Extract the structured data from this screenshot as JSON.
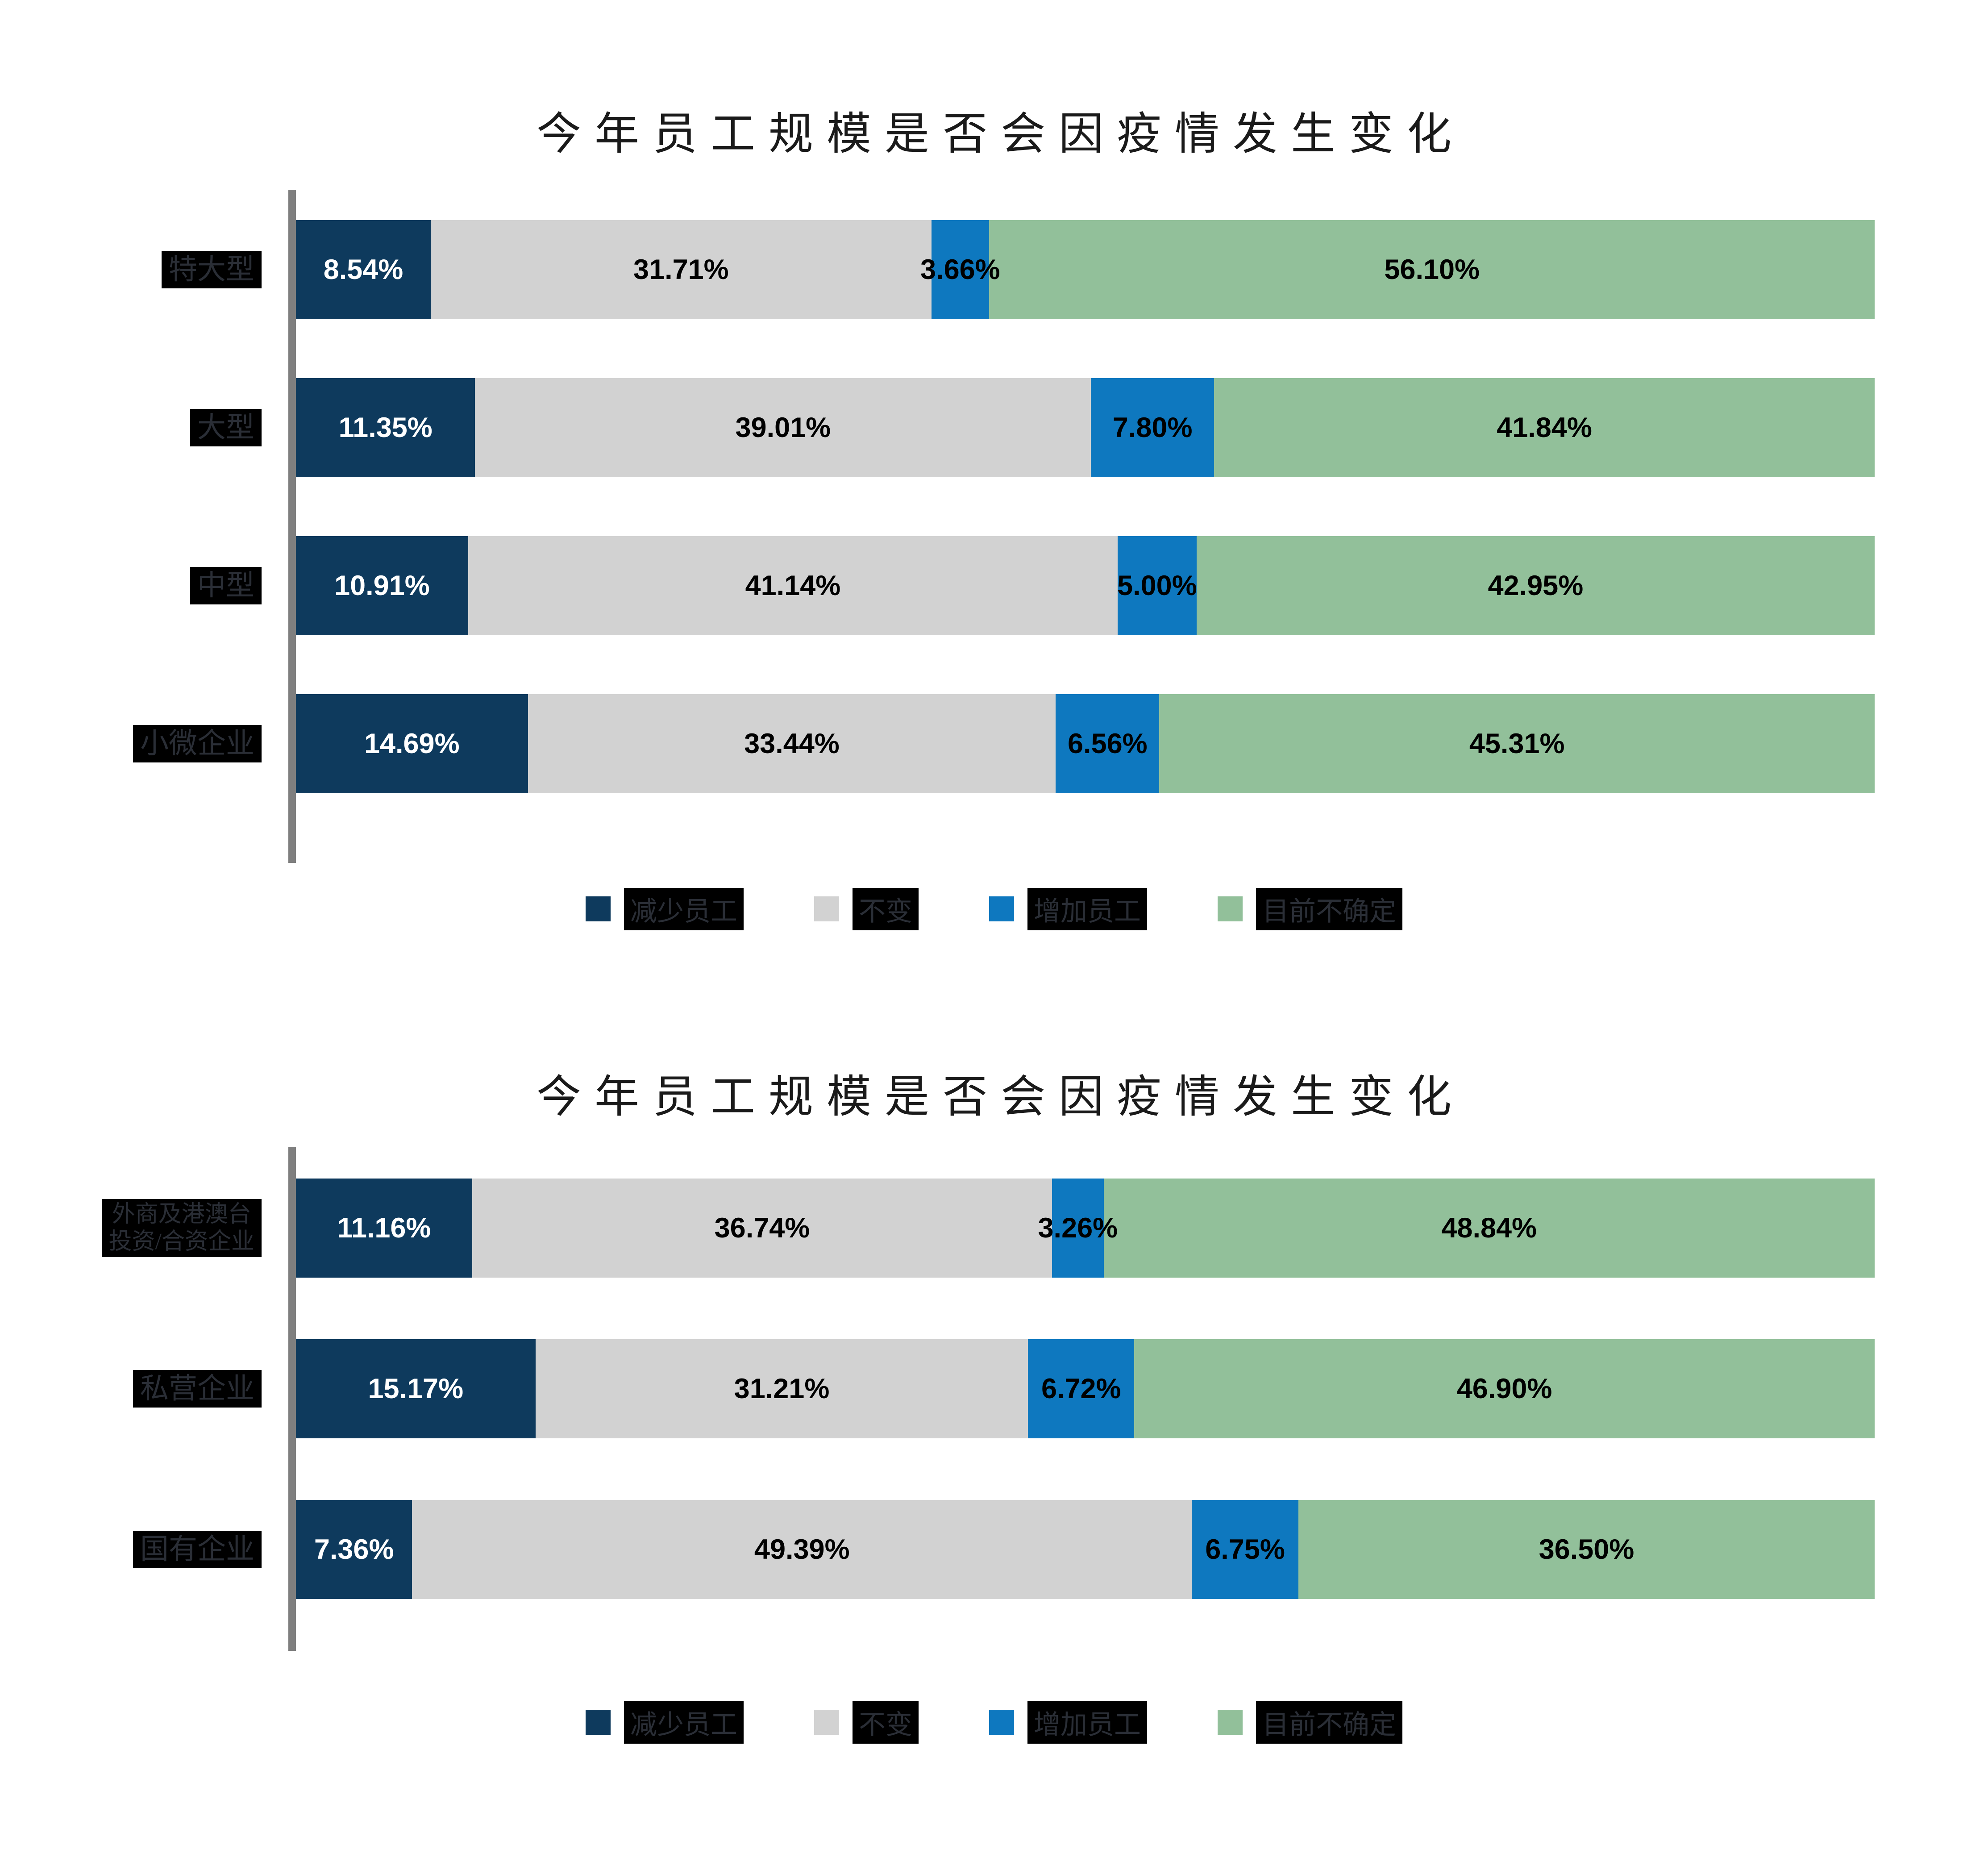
{
  "palette": {
    "page_bg": "#FFFFFF",
    "title_color": "#1A1A1A",
    "axis_line": "#7F7F7F",
    "label_box_bg": "#000000",
    "label_box_text": "#2A2E36",
    "value_label_dark": "#000000",
    "value_label_light": "#FFFFFF"
  },
  "chart_data": [
    {
      "type": "bar",
      "stacked": true,
      "orientation": "horizontal",
      "title": "今年员工规模是否会因疫情发生变化",
      "xlim": [
        0,
        100
      ],
      "grid": false,
      "legend_position": "bottom",
      "categories": [
        "特大型",
        "大型",
        "中型",
        "小微企业"
      ],
      "series": [
        {
          "name": "减少员工",
          "color": "#0E3A5D",
          "value_label_color": "#FFFFFF",
          "values": [
            8.54,
            11.35,
            10.91,
            14.69
          ],
          "labels": [
            "8.54%",
            "11.35%",
            "10.91%",
            "14.69%"
          ]
        },
        {
          "name": "不变",
          "color": "#D2D2D2",
          "value_label_color": "#000000",
          "values": [
            31.71,
            39.01,
            41.14,
            33.44
          ],
          "labels": [
            "31.71%",
            "39.01%",
            "41.14%",
            "33.44%"
          ]
        },
        {
          "name": "增加员工",
          "color": "#0E78BF",
          "value_label_color": "#000000",
          "values": [
            3.66,
            7.8,
            5.0,
            6.56
          ],
          "labels": [
            "3.66%",
            "7.80%",
            "5.00%",
            "6.56%"
          ]
        },
        {
          "name": "目前不确定",
          "color": "#92C09A",
          "value_label_color": "#000000",
          "values": [
            56.1,
            41.84,
            42.95,
            45.31
          ],
          "labels": [
            "56.10%",
            "41.84%",
            "42.95%",
            "45.31%"
          ]
        }
      ]
    },
    {
      "type": "bar",
      "stacked": true,
      "orientation": "horizontal",
      "title": "今年员工规模是否会因疫情发生变化",
      "xlim": [
        0,
        100
      ],
      "grid": false,
      "legend_position": "bottom",
      "categories": [
        "外商及港澳台\n投资/合资企业",
        "私营企业",
        "国有企业"
      ],
      "series": [
        {
          "name": "减少员工",
          "color": "#0E3A5D",
          "value_label_color": "#FFFFFF",
          "values": [
            11.16,
            15.17,
            7.36
          ],
          "labels": [
            "11.16%",
            "15.17%",
            "7.36%"
          ]
        },
        {
          "name": "不变",
          "color": "#D2D2D2",
          "value_label_color": "#000000",
          "values": [
            36.74,
            31.21,
            49.39
          ],
          "labels": [
            "36.74%",
            "31.21%",
            "49.39%"
          ]
        },
        {
          "name": "增加员工",
          "color": "#0E78BF",
          "value_label_color": "#000000",
          "values": [
            3.26,
            6.72,
            6.75
          ],
          "labels": [
            "3.26%",
            "6.72%",
            "6.75%"
          ]
        },
        {
          "name": "目前不确定",
          "color": "#92C09A",
          "value_label_color": "#000000",
          "values": [
            48.84,
            46.9,
            36.5
          ],
          "labels": [
            "48.84%",
            "46.90%",
            "36.50%"
          ]
        }
      ]
    }
  ]
}
